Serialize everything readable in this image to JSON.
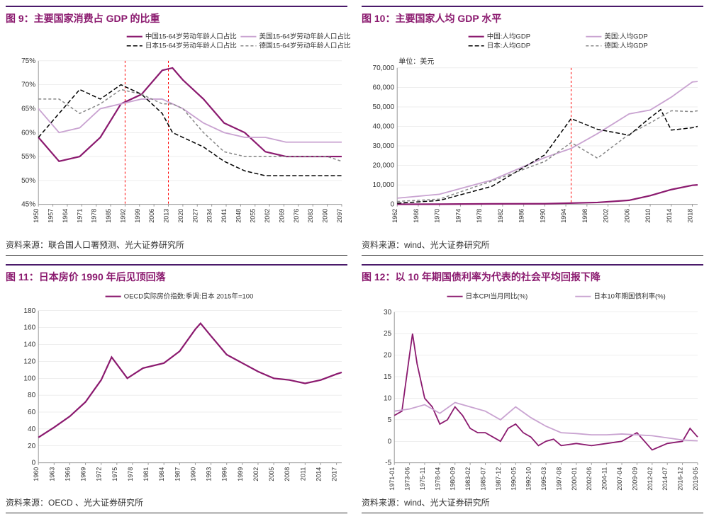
{
  "chart9": {
    "title_prefix": "图 9：",
    "title": "主要国家消费占 GDP 的比重",
    "source": "资料来源：联合国人口署预测、光大证券研究所",
    "type": "line",
    "legend": [
      {
        "label": "中国15-64岁劳动年龄人口占比",
        "color": "#8b1a6f",
        "dash": null,
        "width": 2.2
      },
      {
        "label": "美国15-64岁劳动年龄人口占比",
        "color": "#c9a3d1",
        "dash": null,
        "width": 1.8
      },
      {
        "label": "日本15-64岁劳动年龄人口占比",
        "color": "#000000",
        "dash": "6,3",
        "width": 1.5
      },
      {
        "label": "德国15-64岁劳动年龄人口占比",
        "color": "#888888",
        "dash": "4,3",
        "width": 1.5
      }
    ],
    "x_ticks": [
      1950,
      1957,
      1964,
      1971,
      1978,
      1985,
      1992,
      1999,
      2006,
      2013,
      2020,
      2027,
      2034,
      2041,
      2048,
      2055,
      2062,
      2069,
      2076,
      2083,
      2090,
      2097
    ],
    "y_ticks": [
      45,
      50,
      55,
      60,
      65,
      70,
      75
    ],
    "y_suffix": "%",
    "xlim": [
      1950,
      2097
    ],
    "ylim": [
      45,
      75
    ],
    "vlines": {
      "x": [
        1992,
        2013
      ],
      "color": "#ff0000",
      "dash": "3,3"
    },
    "series": [
      {
        "name": "china",
        "x": [
          1950,
          1960,
          1970,
          1980,
          1990,
          2000,
          2010,
          2015,
          2020,
          2030,
          2040,
          2050,
          2060,
          2070,
          2080,
          2090,
          2097
        ],
        "y": [
          59,
          54,
          55,
          59,
          66,
          68,
          73,
          73.5,
          71,
          67,
          62,
          60,
          56,
          55,
          55,
          55,
          55
        ]
      },
      {
        "name": "usa",
        "x": [
          1950,
          1960,
          1970,
          1980,
          1990,
          2000,
          2010,
          2015,
          2020,
          2030,
          2040,
          2050,
          2060,
          2070,
          2080,
          2090,
          2097
        ],
        "y": [
          65,
          60,
          61,
          65,
          66,
          67,
          67,
          66,
          65,
          62,
          60,
          59,
          59,
          58,
          58,
          58,
          58
        ]
      },
      {
        "name": "japan",
        "x": [
          1950,
          1960,
          1970,
          1980,
          1990,
          2000,
          2010,
          2015,
          2020,
          2030,
          2040,
          2050,
          2060,
          2070,
          2080,
          2090,
          2097
        ],
        "y": [
          59,
          64,
          69,
          67,
          70,
          68,
          64,
          60,
          59,
          57,
          54,
          52,
          51,
          51,
          51,
          51,
          51
        ]
      },
      {
        "name": "germany",
        "x": [
          1950,
          1960,
          1970,
          1980,
          1990,
          2000,
          2010,
          2015,
          2020,
          2030,
          2040,
          2050,
          2060,
          2070,
          2080,
          2090,
          2097
        ],
        "y": [
          67,
          67,
          64,
          66,
          69,
          68,
          66,
          66,
          65,
          60,
          56,
          55,
          55,
          55,
          55,
          55,
          54
        ]
      }
    ],
    "background_color": "#ffffff",
    "grid_color": "#dddddd",
    "title_fontsize": 14,
    "label_fontsize": 10
  },
  "chart10": {
    "title_prefix": "图 10：",
    "title": "主要国家人均 GDP 水平",
    "source": "资料来源：wind、光大证券研究所",
    "type": "line",
    "unit_label": "单位：美元",
    "legend": [
      {
        "label": "中国:人均GDP",
        "color": "#8b1a6f",
        "dash": null,
        "width": 2.2
      },
      {
        "label": "美国:人均GDP",
        "color": "#c9a3d1",
        "dash": null,
        "width": 1.8
      },
      {
        "label": "日本:人均GDP",
        "color": "#000000",
        "dash": "6,3",
        "width": 1.5
      },
      {
        "label": "德国:人均GDP",
        "color": "#888888",
        "dash": "4,3",
        "width": 1.5
      }
    ],
    "x_ticks": [
      1962,
      1966,
      1970,
      1974,
      1978,
      1982,
      1986,
      1990,
      1994,
      1998,
      2002,
      2006,
      2010,
      2014,
      2018
    ],
    "y_ticks": [
      0,
      10000,
      20000,
      30000,
      40000,
      50000,
      60000,
      70000
    ],
    "y_format": "comma",
    "xlim": [
      1962,
      2019
    ],
    "ylim": [
      0,
      70000
    ],
    "vlines": {
      "x": [
        1995
      ],
      "color": "#ff0000",
      "dash": "3,3"
    },
    "series": [
      {
        "name": "china",
        "x": [
          1962,
          1970,
          1980,
          1990,
          2000,
          2006,
          2010,
          2014,
          2018,
          2019
        ],
        "y": [
          70,
          110,
          300,
          350,
          1000,
          2100,
          4500,
          7600,
          9800,
          10000
        ]
      },
      {
        "name": "usa",
        "x": [
          1962,
          1970,
          1980,
          1990,
          1995,
          2000,
          2006,
          2010,
          2014,
          2018,
          2019
        ],
        "y": [
          3200,
          5200,
          12500,
          24000,
          28700,
          36300,
          46400,
          48400,
          55000,
          62800,
          63000
        ]
      },
      {
        "name": "japan",
        "x": [
          1962,
          1970,
          1980,
          1990,
          1995,
          2000,
          2006,
          2010,
          2012,
          2014,
          2018,
          2019
        ],
        "y": [
          600,
          2000,
          9300,
          25400,
          44000,
          38500,
          35500,
          44500,
          48600,
          38100,
          39300,
          40000
        ]
      },
      {
        "name": "germany",
        "x": [
          1962,
          1970,
          1980,
          1990,
          1995,
          2000,
          2006,
          2010,
          2014,
          2018,
          2019
        ],
        "y": [
          1500,
          2700,
          12000,
          22000,
          31700,
          23700,
          36000,
          41800,
          48000,
          47600,
          48000
        ]
      }
    ],
    "background_color": "#ffffff",
    "grid_color": "#dddddd",
    "title_fontsize": 14,
    "label_fontsize": 10
  },
  "chart11": {
    "title_prefix": "图 11：",
    "title": "日本房价 1990 年后见顶回落",
    "source": "资料来源：OECD 、光大证券研究所",
    "type": "line",
    "legend": [
      {
        "label": "OECD实际房价指数:季调:日本 2015年=100",
        "color": "#8b1a6f",
        "dash": null,
        "width": 2.2
      }
    ],
    "x_ticks": [
      1960,
      1963,
      1966,
      1969,
      1972,
      1975,
      1978,
      1981,
      1984,
      1987,
      1990,
      1993,
      1996,
      1999,
      2002,
      2005,
      2008,
      2011,
      2014,
      2017
    ],
    "y_ticks": [
      0,
      20,
      40,
      60,
      80,
      100,
      120,
      140,
      160,
      180
    ],
    "xlim": [
      1960,
      2018
    ],
    "ylim": [
      0,
      180
    ],
    "series": [
      {
        "name": "japan_house",
        "x": [
          1960,
          1963,
          1966,
          1969,
          1972,
          1974,
          1977,
          1980,
          1984,
          1987,
          1990,
          1991,
          1993,
          1996,
          1999,
          2002,
          2005,
          2008,
          2011,
          2014,
          2017,
          2018
        ],
        "y": [
          30,
          42,
          55,
          72,
          98,
          125,
          100,
          112,
          118,
          132,
          158,
          165,
          150,
          128,
          118,
          108,
          100,
          98,
          94,
          98,
          105,
          107
        ]
      }
    ],
    "background_color": "#ffffff",
    "grid_color": "#dddddd",
    "title_fontsize": 14,
    "label_fontsize": 10
  },
  "chart12": {
    "title_prefix": "图 12：",
    "title": "以 10 年期国债利率为代表的社会平均回报下降",
    "source": "资料来源：wind、光大证券研究所",
    "type": "line",
    "legend": [
      {
        "label": "日本CPI当月同比(%)",
        "color": "#8b1a6f",
        "dash": null,
        "width": 1.8
      },
      {
        "label": "日本10年期国债利率(%)",
        "color": "#c9a3d1",
        "dash": null,
        "width": 1.8
      }
    ],
    "x_ticks": [
      "1971-01",
      "1973-06",
      "1975-11",
      "1978-04",
      "1980-09",
      "1983-02",
      "1985-07",
      "1987-12",
      "1990-05",
      "1992-10",
      "1995-03",
      "1997-08",
      "2000-01",
      "2002-06",
      "2004-11",
      "2007-04",
      "2009-09",
      "2012-02",
      "2014-07",
      "2016-12",
      "2019-05"
    ],
    "y_ticks": [
      -5,
      0,
      5,
      10,
      15,
      20,
      25,
      30
    ],
    "xlim_idx": [
      0,
      20
    ],
    "ylim": [
      -5,
      30
    ],
    "series": [
      {
        "name": "cpi",
        "x_idx": [
          0,
          0.5,
          1,
          1.2,
          1.5,
          2,
          2.5,
          3,
          3.5,
          4,
          4.5,
          5,
          5.5,
          6,
          6.5,
          7,
          7.5,
          8,
          8.5,
          9,
          9.5,
          10,
          10.5,
          11,
          12,
          13,
          14,
          15,
          16,
          17,
          18,
          19,
          19.5,
          20
        ],
        "y": [
          6,
          7,
          20,
          25,
          18,
          10,
          8,
          4,
          5,
          8,
          6,
          3,
          2,
          2,
          1,
          0,
          3,
          4,
          2,
          1,
          -1,
          0,
          0.5,
          -1,
          -0.5,
          -1,
          -0.5,
          0,
          2,
          -2,
          -0.5,
          0,
          3,
          1
        ]
      },
      {
        "name": "bond",
        "x_idx": [
          0,
          1,
          2,
          3,
          4,
          5,
          6,
          7,
          7.5,
          8,
          9,
          10,
          11,
          12,
          13,
          14,
          15,
          16,
          17,
          18,
          19,
          20
        ],
        "y": [
          7,
          7.5,
          8.5,
          6.5,
          9,
          8,
          7,
          5,
          6.5,
          8,
          5.5,
          3.5,
          2,
          1.8,
          1.5,
          1.5,
          1.7,
          1.5,
          1.3,
          0.8,
          0.3,
          0.1
        ]
      }
    ],
    "background_color": "#ffffff",
    "grid_color": "#dddddd",
    "title_fontsize": 14,
    "label_fontsize": 10
  }
}
